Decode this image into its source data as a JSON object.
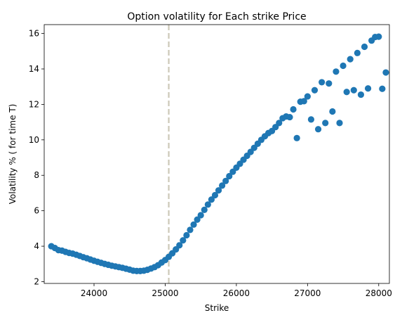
{
  "chart_data": {
    "type": "scatter",
    "title": "Option volatility for Each strike Price",
    "xlabel": "Strike",
    "ylabel": "Volatility % ( for time T)",
    "xlim": [
      23300,
      28150
    ],
    "ylim": [
      1.9,
      16.5
    ],
    "x_ticks": [
      24000,
      25000,
      26000,
      27000,
      28000
    ],
    "y_ticks": [
      2,
      4,
      6,
      8,
      10,
      12,
      14,
      16
    ],
    "grid": false,
    "legend": "none",
    "colors": {
      "points": "#1f77b4",
      "vline": "#ccc8b8",
      "axis": "#000000"
    },
    "vline": {
      "x": 25050,
      "style": "dashed"
    },
    "points": [
      [
        23400,
        4.0
      ],
      [
        23450,
        3.9
      ],
      [
        23500,
        3.78
      ],
      [
        23550,
        3.75
      ],
      [
        23600,
        3.68
      ],
      [
        23650,
        3.62
      ],
      [
        23700,
        3.58
      ],
      [
        23750,
        3.52
      ],
      [
        23800,
        3.45
      ],
      [
        23850,
        3.38
      ],
      [
        23900,
        3.32
      ],
      [
        23950,
        3.25
      ],
      [
        24000,
        3.18
      ],
      [
        24050,
        3.12
      ],
      [
        24100,
        3.06
      ],
      [
        24150,
        3.0
      ],
      [
        24200,
        2.95
      ],
      [
        24250,
        2.9
      ],
      [
        24300,
        2.86
      ],
      [
        24350,
        2.82
      ],
      [
        24400,
        2.78
      ],
      [
        24450,
        2.73
      ],
      [
        24500,
        2.68
      ],
      [
        24550,
        2.62
      ],
      [
        24600,
        2.6
      ],
      [
        24650,
        2.6
      ],
      [
        24700,
        2.62
      ],
      [
        24750,
        2.67
      ],
      [
        24800,
        2.74
      ],
      [
        24850,
        2.82
      ],
      [
        24900,
        2.93
      ],
      [
        24950,
        3.08
      ],
      [
        25000,
        3.22
      ],
      [
        25050,
        3.4
      ],
      [
        25100,
        3.6
      ],
      [
        25150,
        3.82
      ],
      [
        25200,
        4.05
      ],
      [
        25250,
        4.33
      ],
      [
        25300,
        4.62
      ],
      [
        25350,
        4.92
      ],
      [
        25400,
        5.22
      ],
      [
        25450,
        5.5
      ],
      [
        25500,
        5.75
      ],
      [
        25550,
        6.05
      ],
      [
        25600,
        6.35
      ],
      [
        25650,
        6.63
      ],
      [
        25700,
        6.88
      ],
      [
        25750,
        7.15
      ],
      [
        25800,
        7.42
      ],
      [
        25850,
        7.68
      ],
      [
        25900,
        7.95
      ],
      [
        25950,
        8.2
      ],
      [
        26000,
        8.43
      ],
      [
        26050,
        8.65
      ],
      [
        26100,
        8.88
      ],
      [
        26150,
        9.1
      ],
      [
        26200,
        9.32
      ],
      [
        26250,
        9.55
      ],
      [
        26300,
        9.78
      ],
      [
        26350,
        10.0
      ],
      [
        26400,
        10.2
      ],
      [
        26450,
        10.38
      ],
      [
        26500,
        10.5
      ],
      [
        26550,
        10.72
      ],
      [
        26600,
        10.95
      ],
      [
        26650,
        11.22
      ],
      [
        26700,
        11.32
      ],
      [
        26750,
        11.28
      ],
      [
        26800,
        11.72
      ],
      [
        26850,
        10.1
      ],
      [
        26900,
        12.15
      ],
      [
        26950,
        12.18
      ],
      [
        27000,
        12.45
      ],
      [
        27050,
        11.15
      ],
      [
        27100,
        12.8
      ],
      [
        27150,
        10.6
      ],
      [
        27200,
        13.25
      ],
      [
        27250,
        10.95
      ],
      [
        27300,
        13.18
      ],
      [
        27350,
        11.6
      ],
      [
        27400,
        13.85
      ],
      [
        27450,
        10.95
      ],
      [
        27500,
        14.18
      ],
      [
        27550,
        12.7
      ],
      [
        27600,
        14.55
      ],
      [
        27650,
        12.8
      ],
      [
        27700,
        14.9
      ],
      [
        27750,
        12.55
      ],
      [
        27800,
        15.25
      ],
      [
        27850,
        12.9
      ],
      [
        27900,
        15.6
      ],
      [
        27950,
        15.8
      ],
      [
        28000,
        15.82
      ],
      [
        28050,
        12.88
      ],
      [
        28100,
        13.8
      ]
    ]
  }
}
